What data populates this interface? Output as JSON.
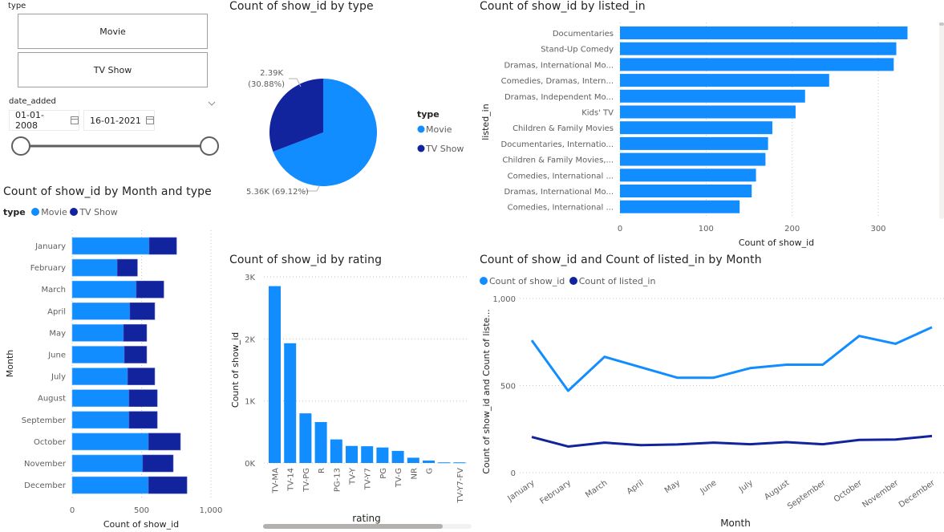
{
  "colors": {
    "movie": "#118DFF",
    "tvshow": "#12239E",
    "grid": "#c8c6c4",
    "axis_text": "#605e5c"
  },
  "slicer_type": {
    "label": "type",
    "options": [
      "Movie",
      "TV Show"
    ]
  },
  "slicer_date": {
    "label": "date_added",
    "start": "01-01-2008",
    "end": "16-01-2021",
    "range_fraction": [
      0,
      1
    ]
  },
  "chart_data": [
    {
      "id": "pie",
      "type": "pie",
      "title": "Count of show_id by type",
      "legend_title": "type",
      "legend_position": "right",
      "categories": [
        "Movie",
        "TV Show"
      ],
      "values": [
        5360,
        2390
      ],
      "labels": [
        "5.36K (69.12%)",
        "2.39K\n(30.88%)"
      ],
      "percent": [
        69.12,
        30.88
      ]
    },
    {
      "id": "listed_in",
      "type": "bar",
      "orientation": "horizontal",
      "title": "Count of show_id by listed_in",
      "xlabel": "Count of show_id",
      "ylabel": "listed_in",
      "categories": [
        "Documentaries",
        "Stand-Up Comedy",
        "Dramas, International Mo...",
        "Comedies, Dramas, Intern...",
        "Dramas, Independent Mo...",
        "Kids' TV",
        "Children & Family Movies",
        "Documentaries, Internatio...",
        "Children & Family Movies,...",
        "Comedies, International ...",
        "Dramas, International Mo...",
        "Comedies, International ..."
      ],
      "values": [
        334,
        321,
        318,
        243,
        215,
        204,
        177,
        172,
        169,
        158,
        153,
        139
      ],
      "xlim": [
        0,
        330
      ],
      "xticks": [
        0,
        100,
        200,
        300
      ],
      "xtick_labels": [
        "0",
        "100",
        "200",
        "300"
      ],
      "grid": true
    },
    {
      "id": "month_type",
      "type": "bar",
      "orientation": "horizontal",
      "stacked": true,
      "title": "Count of show_id by Month and type",
      "legend_title": "type",
      "legend_position": "top-left",
      "xlabel": "Count of show_id",
      "ylabel": "Month",
      "categories": [
        "January",
        "February",
        "March",
        "April",
        "May",
        "June",
        "July",
        "August",
        "September",
        "October",
        "November",
        "December"
      ],
      "series": [
        {
          "name": "Movie",
          "values": [
            555,
            325,
            462,
            416,
            370,
            376,
            400,
            410,
            410,
            550,
            508,
            550
          ]
        },
        {
          "name": "TV Show",
          "values": [
            197,
            145,
            198,
            179,
            167,
            161,
            195,
            203,
            203,
            230,
            220,
            277
          ]
        }
      ],
      "xlim": [
        0,
        1000
      ],
      "xticks": [
        0,
        500,
        1000
      ],
      "xtick_labels": [
        "0",
        "500",
        "1,000"
      ],
      "grid": true
    },
    {
      "id": "rating",
      "type": "bar",
      "orientation": "vertical",
      "title": "Count of show_id by rating",
      "xlabel": "rating",
      "ylabel": "Count of show_id",
      "categories": [
        "TV-MA",
        "TV-14",
        "TV-PG",
        "R",
        "PG-13",
        "TV-Y",
        "TV-Y7",
        "PG",
        "TV-G",
        "NR",
        "G",
        "",
        "TV-Y7-FV"
      ],
      "values": [
        2850,
        1930,
        800,
        660,
        380,
        275,
        270,
        250,
        195,
        85,
        40,
        10,
        10
      ],
      "ylim": [
        0,
        3000
      ],
      "yticks": [
        0,
        1000,
        2000,
        3000
      ],
      "ytick_labels": [
        "0K",
        "1K",
        "2K",
        "3K"
      ],
      "grid": true
    },
    {
      "id": "month_line",
      "type": "line",
      "title": "Count of show_id and Count of listed_in by Month",
      "legend_position": "top-left",
      "xlabel": "Month",
      "ylabel": "Count of show_id and Count of liste...",
      "x": [
        "January",
        "February",
        "March",
        "April",
        "May",
        "June",
        "July",
        "August",
        "September",
        "October",
        "November",
        "December"
      ],
      "series": [
        {
          "name": "Count of show_id",
          "values": [
            760,
            470,
            665,
            605,
            545,
            545,
            600,
            620,
            620,
            785,
            740,
            835
          ]
        },
        {
          "name": "Count of listed_in",
          "values": [
            205,
            150,
            172,
            158,
            162,
            172,
            163,
            175,
            163,
            188,
            190,
            210
          ]
        }
      ],
      "ylim": [
        0,
        1000
      ],
      "yticks": [
        0,
        500,
        1000
      ],
      "ytick_labels": [
        "0",
        "500",
        "1,000"
      ],
      "grid": true
    }
  ]
}
